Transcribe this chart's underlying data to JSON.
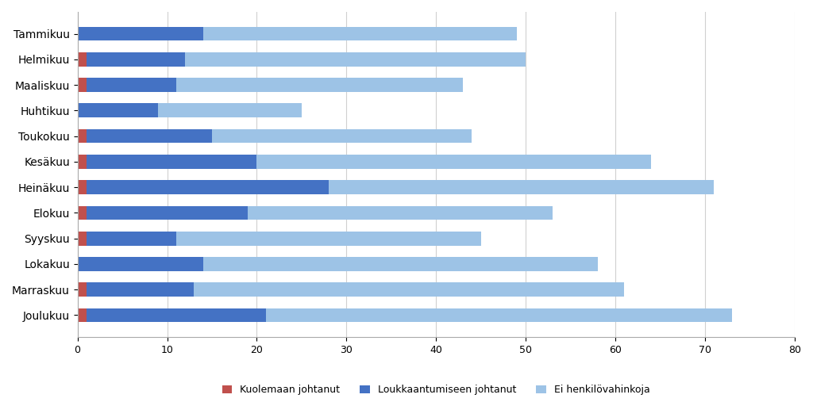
{
  "months": [
    "Tammikuu",
    "Helmikuu",
    "Maaliskuu",
    "Huhtikuu",
    "Toukokuu",
    "Kesäkuu",
    "Heinäkuu",
    "Elokuu",
    "Syyskuu",
    "Lokakuu",
    "Marraskuu",
    "Joulukuu"
  ],
  "kuolemaan": [
    0,
    1,
    1,
    0,
    1,
    1,
    1,
    1,
    1,
    0,
    1,
    1
  ],
  "loukkaantumiseen": [
    14,
    11,
    10,
    9,
    14,
    19,
    27,
    18,
    10,
    14,
    12,
    20
  ],
  "ei_henkilovahinkoja": [
    35,
    38,
    32,
    16,
    29,
    44,
    43,
    34,
    34,
    44,
    48,
    52
  ],
  "color_kuolemaan": "#c0504d",
  "color_loukkaantumiseen": "#4472c4",
  "color_ei_henkilovahinkoja": "#9dc3e6",
  "legend_kuolemaan": "Kuolemaan johtanut",
  "legend_loukkaantumiseen": "Loukkaantumiseen johtanut",
  "legend_ei_henkilovahinkoja": "Ei henkilövahinkoja",
  "xlim": [
    0,
    80
  ],
  "xticks": [
    0,
    10,
    20,
    30,
    40,
    50,
    60,
    70,
    80
  ],
  "background_color": "#ffffff",
  "grid_color": "#d0d0d0",
  "bar_height": 0.55,
  "figsize": [
    10.24,
    5.12
  ],
  "dpi": 100
}
